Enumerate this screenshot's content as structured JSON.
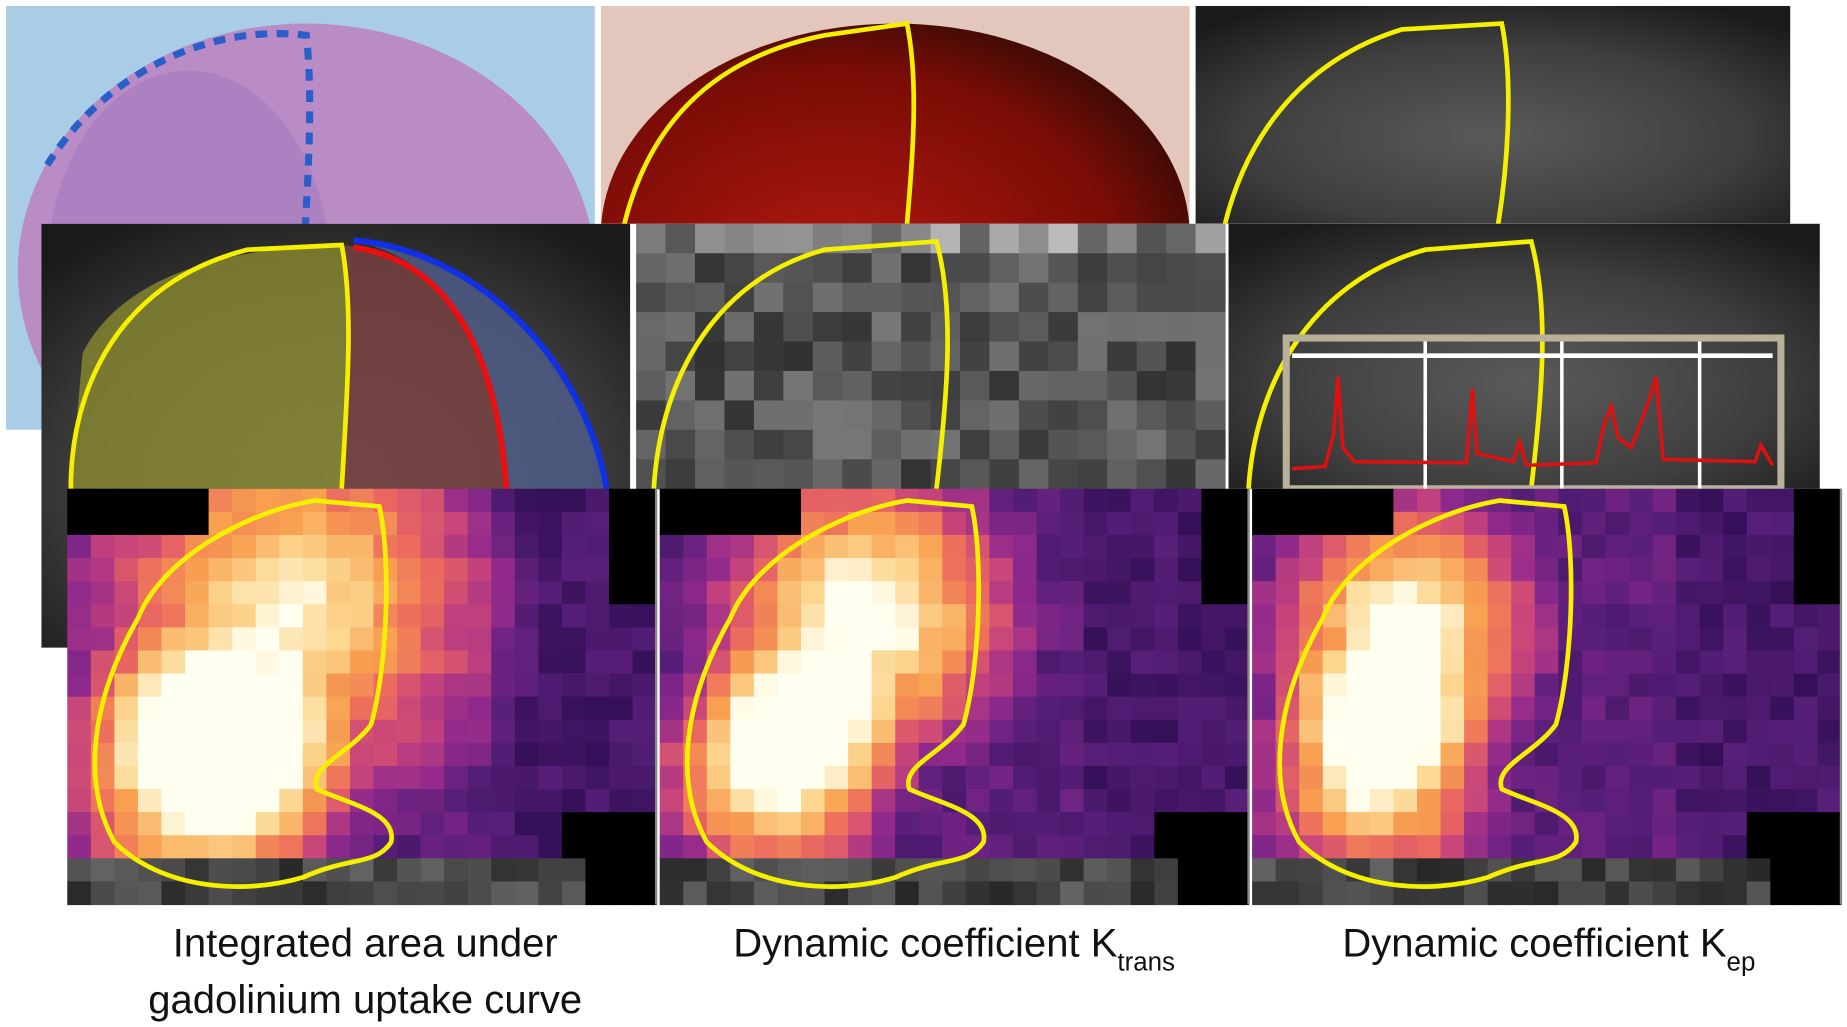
{
  "captions": [
    {
      "lines": [
        "Integrated area under",
        "gadolinium uptake curve"
      ]
    },
    {
      "text": "Dynamic coefficient K",
      "subscript": "trans"
    },
    {
      "text": "Dynamic coefficient K",
      "subscript": "ep"
    }
  ]
}
